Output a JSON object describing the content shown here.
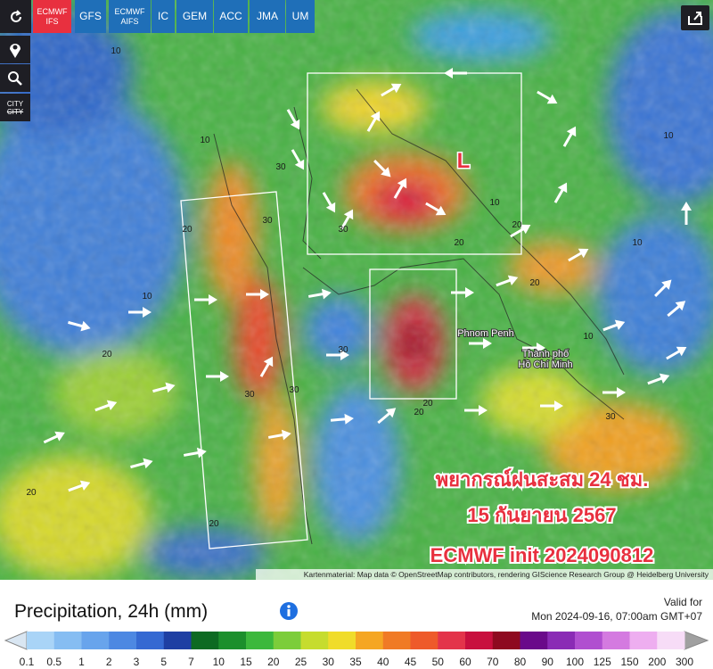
{
  "toolbar": {
    "models": [
      {
        "lines": [
          "ECMWF",
          "IFS"
        ],
        "active": true
      },
      {
        "lines": [
          "GFS"
        ],
        "active": false
      },
      {
        "lines": [
          "ECMWF",
          "AIFS"
        ],
        "active": false
      },
      {
        "lines": [
          "IC"
        ],
        "active": false
      },
      {
        "lines": [
          "GEM"
        ],
        "active": false
      },
      {
        "lines": [
          "ACC"
        ],
        "active": false
      },
      {
        "lines": [
          "JMA"
        ],
        "active": false
      },
      {
        "lines": [
          "UM"
        ],
        "active": false
      }
    ]
  },
  "side": {
    "city": "CITY"
  },
  "map": {
    "overlay_lines": [
      "พยากรณ์ฝนสะสม 24 ชม.",
      "15 กันยายน 2567",
      "ECMWF init 2024090812"
    ],
    "pressure_label": "L",
    "cities": [
      [
        "Phnom Penh"
      ],
      [
        "Thành phố",
        "Hồ Chí Minh"
      ]
    ],
    "contour_labels": [
      "10",
      "20",
      "30",
      "10",
      "20",
      "30",
      "20",
      "10",
      "30",
      "20",
      "10",
      "30",
      "20",
      "10",
      "20",
      "30",
      "10",
      "20",
      "20",
      "30",
      "10",
      "20",
      "30",
      "10"
    ],
    "attribution": "Kartenmaterial: Map data © OpenStreetMap contributors, rendering GIScience Research Group @ Heidelberg University"
  },
  "legend": {
    "title": "Precipitation, 24h (mm)",
    "valid_label": "Valid for",
    "valid_time": "Mon 2024-09-16, 07:00am GMT+07",
    "ticks": [
      "0.1",
      "0.5",
      "1",
      "2",
      "3",
      "5",
      "7",
      "10",
      "15",
      "20",
      "25",
      "30",
      "35",
      "40",
      "45",
      "50",
      "60",
      "70",
      "80",
      "90",
      "100",
      "125",
      "150",
      "200",
      "300"
    ],
    "colors": [
      "#a9d4f7",
      "#86bdf2",
      "#68a4ec",
      "#4d88e2",
      "#3569d2",
      "#1e3fa3",
      "#0d6a22",
      "#1c8f2c",
      "#3cb83c",
      "#7ccd3a",
      "#c6dc2e",
      "#f0dc2a",
      "#f5a623",
      "#f07a25",
      "#ee5a2a",
      "#e3344a",
      "#c8103e",
      "#8e0a20",
      "#6a0a8a",
      "#8a2bb5",
      "#b04fd0",
      "#d47ae0",
      "#eeaef0",
      "#f7dcf7"
    ],
    "end_colors": [
      "#d9e6f2",
      "#a0a0a0"
    ]
  }
}
